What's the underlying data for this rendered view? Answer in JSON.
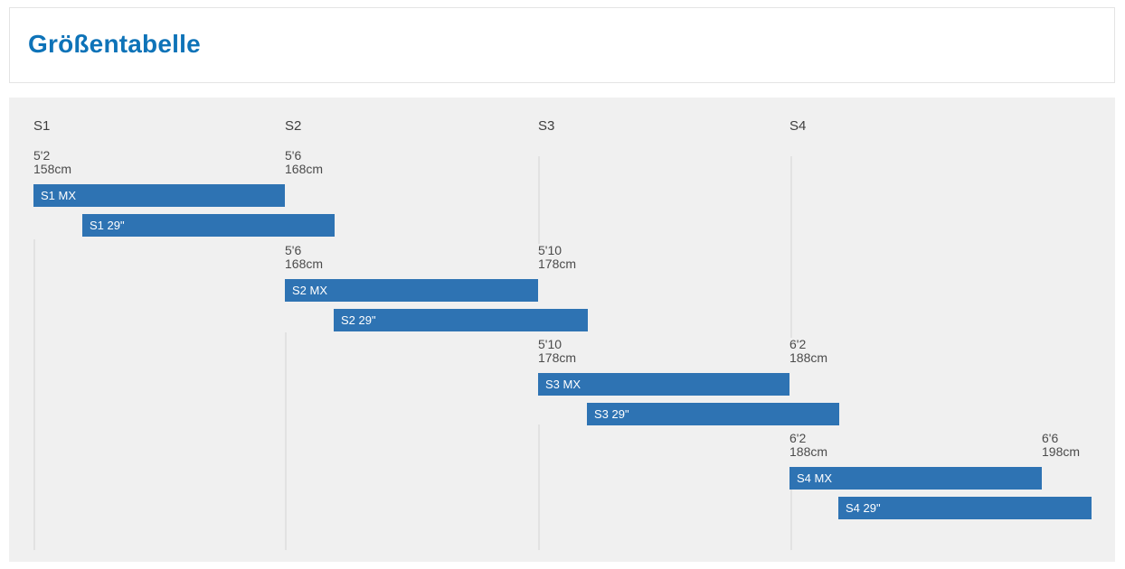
{
  "title": "Größentabelle",
  "colors": {
    "accent": "#0e73b8",
    "bar": "#2e73b3",
    "bar_text": "#ffffff",
    "chart_bg": "#f0f0f0",
    "gridline": "#e2e2e2",
    "header_text": "#3e3e3e",
    "label_text": "#4b4b4b",
    "card_border": "#e4e4e4"
  },
  "chart_data": {
    "type": "bar",
    "subtype": "horizontal-range-timeline",
    "title": "Größentabelle",
    "legend": "none",
    "grid": "partial-vertical-lines",
    "x_axis_unit": "rider height",
    "columns": [
      "S1",
      "S2",
      "S3",
      "S4"
    ],
    "sections": [
      {
        "name": "S1",
        "start": {
          "imperial": "5'2",
          "metric": "158cm",
          "cm": 158
        },
        "end": {
          "imperial": "5'6",
          "metric": "168cm",
          "cm": 168
        },
        "bars": [
          {
            "label": "S1 MX",
            "range_cm": [
              158,
              168
            ]
          },
          {
            "label": "S1 29\"",
            "range_cm": [
              160,
              170
            ]
          }
        ]
      },
      {
        "name": "S2",
        "start": {
          "imperial": "5'6",
          "metric": "168cm",
          "cm": 168
        },
        "end": {
          "imperial": "5'10",
          "metric": "178cm",
          "cm": 178
        },
        "bars": [
          {
            "label": "S2 MX",
            "range_cm": [
              168,
              178
            ]
          },
          {
            "label": "S2 29\"",
            "range_cm": [
              170,
              180
            ]
          }
        ]
      },
      {
        "name": "S3",
        "start": {
          "imperial": "5'10",
          "metric": "178cm",
          "cm": 178
        },
        "end": {
          "imperial": "6'2",
          "metric": "188cm",
          "cm": 188
        },
        "bars": [
          {
            "label": "S3 MX",
            "range_cm": [
              178,
              188
            ]
          },
          {
            "label": "S3 29\"",
            "range_cm": [
              180,
              190
            ]
          }
        ]
      },
      {
        "name": "S4",
        "start": {
          "imperial": "6'2",
          "metric": "188cm",
          "cm": 188
        },
        "end": {
          "imperial": "6'6",
          "metric": "198cm",
          "cm": 198
        },
        "bars": [
          {
            "label": "S4 MX",
            "range_cm": [
              188,
              198
            ]
          },
          {
            "label": "S4 29\"",
            "range_cm": [
              190,
              200
            ]
          }
        ]
      }
    ]
  }
}
